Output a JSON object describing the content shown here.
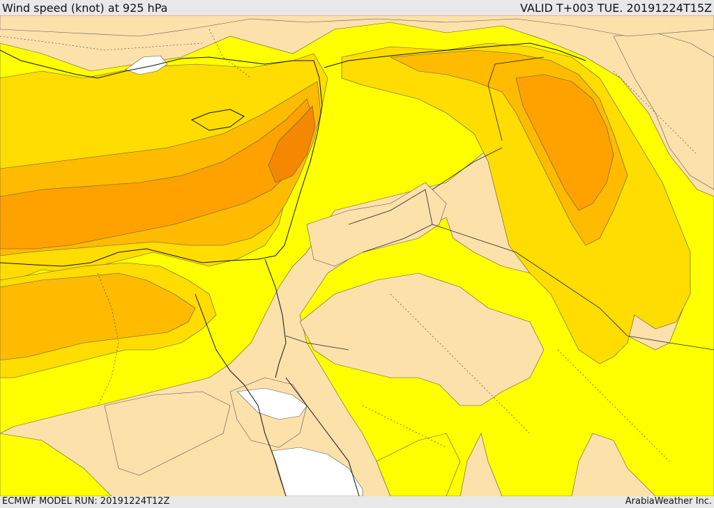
{
  "header": {
    "title": "Wind speed (knot) at 925 hPa",
    "valid": "VALID T+003 TUE. 20191224T15Z"
  },
  "footer": {
    "model_run": "ECMWF MODEL RUN: 20191224T12Z",
    "credit": "ArabiaWeather Inc."
  },
  "colors": {
    "level_low": "#fde1ab",
    "level_1": "#ffff00",
    "level_2": "#ffdd00",
    "level_3": "#ffbb00",
    "level_4": "#ffa200",
    "level_5": "#f58800",
    "water_calm": "#ffffff",
    "frame": "#e8e8e8"
  }
}
